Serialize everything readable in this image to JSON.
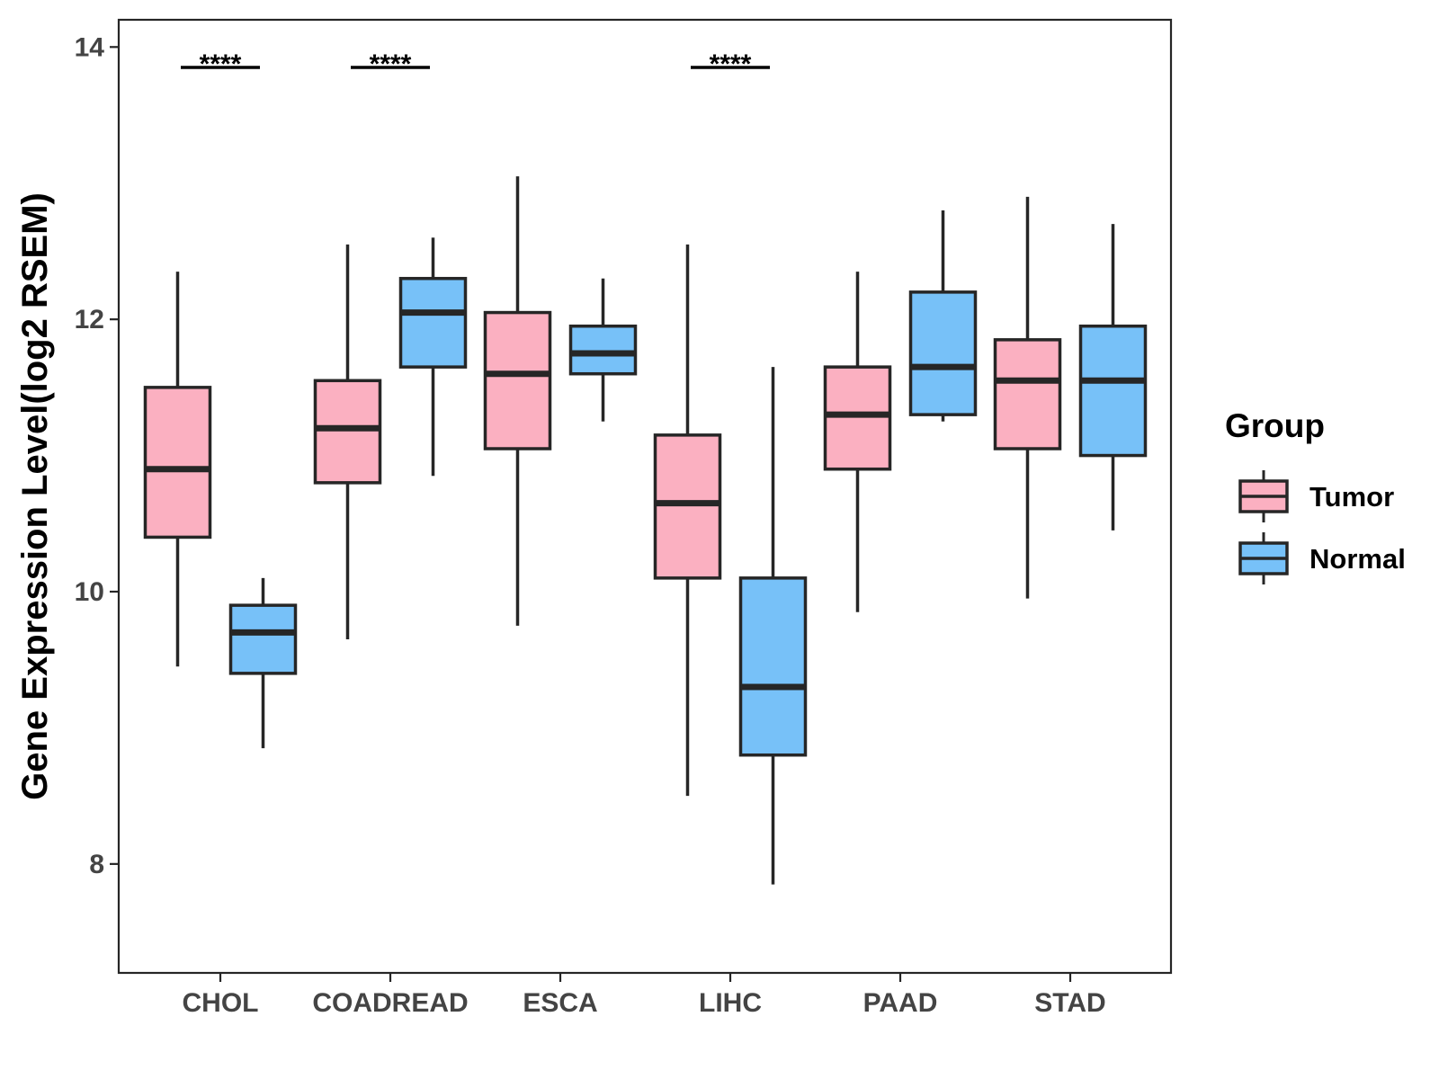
{
  "chart_data": {
    "type": "boxplot",
    "title": "",
    "xlabel": "",
    "ylabel": "Gene Expression Level(log2 RSEM)",
    "ylim": [
      7.2,
      14.2
    ],
    "yticks": [
      8,
      10,
      12,
      14
    ],
    "categories": [
      "CHOL",
      "COADREAD",
      "ESCA",
      "LIHC",
      "PAAD",
      "STAD"
    ],
    "legend": {
      "title": "Group",
      "position": "right",
      "entries": [
        {
          "name": "Tumor",
          "color": "#FBB0C1"
        },
        {
          "name": "Normal",
          "color": "#77C1F8"
        }
      ]
    },
    "series": [
      {
        "name": "Tumor",
        "color": "#FBB0C1",
        "boxes": [
          {
            "whisker_low": 9.45,
            "q1": 10.4,
            "median": 10.9,
            "q3": 11.5,
            "whisker_high": 12.35
          },
          {
            "whisker_low": 9.65,
            "q1": 10.8,
            "median": 11.2,
            "q3": 11.55,
            "whisker_high": 12.55
          },
          {
            "whisker_low": 9.75,
            "q1": 11.05,
            "median": 11.6,
            "q3": 12.05,
            "whisker_high": 13.05
          },
          {
            "whisker_low": 8.5,
            "q1": 10.1,
            "median": 10.65,
            "q3": 11.15,
            "whisker_high": 12.55
          },
          {
            "whisker_low": 9.85,
            "q1": 10.9,
            "median": 11.3,
            "q3": 11.65,
            "whisker_high": 12.35
          },
          {
            "whisker_low": 9.95,
            "q1": 11.05,
            "median": 11.55,
            "q3": 11.85,
            "whisker_high": 12.9
          }
        ]
      },
      {
        "name": "Normal",
        "color": "#77C1F8",
        "boxes": [
          {
            "whisker_low": 8.85,
            "q1": 9.4,
            "median": 9.7,
            "q3": 9.9,
            "whisker_high": 10.1
          },
          {
            "whisker_low": 10.85,
            "q1": 11.65,
            "median": 12.05,
            "q3": 12.3,
            "whisker_high": 12.6
          },
          {
            "whisker_low": 11.25,
            "q1": 11.6,
            "median": 11.75,
            "q3": 11.95,
            "whisker_high": 12.3
          },
          {
            "whisker_low": 7.85,
            "q1": 8.8,
            "median": 9.3,
            "q3": 10.1,
            "whisker_high": 11.65
          },
          {
            "whisker_low": 11.25,
            "q1": 11.3,
            "median": 11.65,
            "q3": 12.2,
            "whisker_high": 12.8
          },
          {
            "whisker_low": 10.45,
            "q1": 11.0,
            "median": 11.55,
            "q3": 11.95,
            "whisker_high": 12.7
          }
        ]
      }
    ],
    "significance": [
      {
        "category": "CHOL",
        "label": "****",
        "y": 13.85
      },
      {
        "category": "COADREAD",
        "label": "****",
        "y": 13.85
      },
      {
        "category": "LIHC",
        "label": "****",
        "y": 13.85
      }
    ]
  }
}
